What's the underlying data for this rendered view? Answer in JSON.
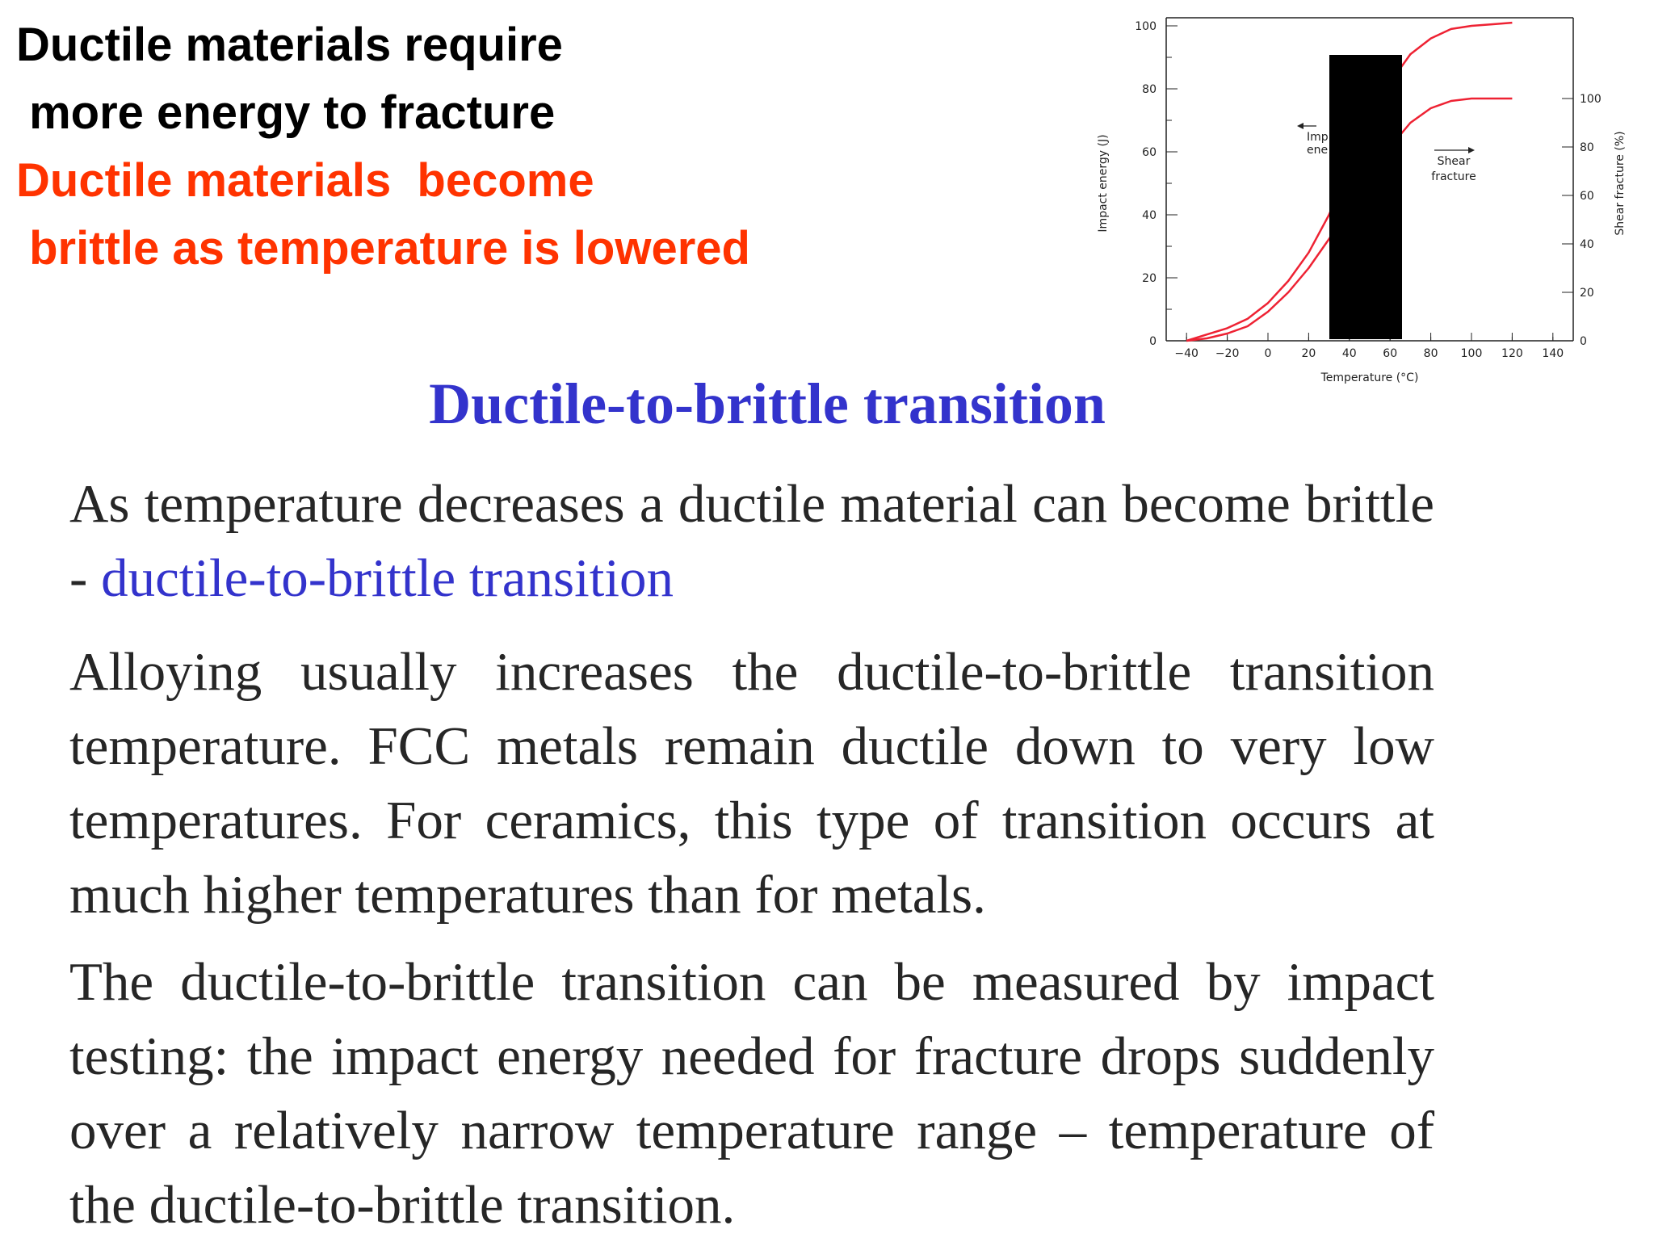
{
  "headline": {
    "line1": "Ductile materials require\n more energy to fracture",
    "line2": "Ductile materials  become\n brittle as temperature is lowered",
    "color1": "#000000",
    "color2": "#ff3300"
  },
  "title": {
    "text": "Ductile-to-brittle transition",
    "color": "#3333cc"
  },
  "body": {
    "p1_text": "As temperature decreases a ductile material can become brittle - ",
    "p1_term": "ductile-to-brittle transition",
    "term_color": "#3333cc",
    "p2": "Alloying usually increases the ductile-to-brittle transition temperature.  FCC metals remain ductile down to very low temperatures.  For ceramics, this type of transition occurs at much higher temperatures than for metals.",
    "p3": "The ductile-to-brittle transition can be measured by impact testing: the impact energy needed for fracture drops suddenly over a relatively narrow temperature range – temperature of the ductile-to-brittle transition."
  },
  "chart_data": {
    "type": "line",
    "xlabel": "Temperature (°C)",
    "ylabel": "Impact energy (J)",
    "y2label": "Shear fracture (%)",
    "xlim": [
      -50,
      150
    ],
    "ylim": [
      0,
      100
    ],
    "y2lim": [
      0,
      130
    ],
    "x_ticks": [
      -40,
      -20,
      0,
      20,
      40,
      60,
      80,
      100,
      120,
      140
    ],
    "y_ticks": [
      0,
      20,
      40,
      60,
      80,
      100
    ],
    "y2_ticks": [
      0,
      20,
      40,
      60,
      80,
      100
    ],
    "line_color": "#ee2233",
    "series": [
      {
        "axis": "left",
        "x": [
          -40,
          -30,
          -20,
          -10,
          0,
          10,
          20,
          30,
          40,
          50,
          60,
          70,
          80,
          90,
          100,
          110,
          120
        ],
        "y": [
          0,
          2,
          4,
          7,
          12,
          19,
          28,
          40,
          55,
          70,
          82,
          91,
          96,
          99,
          100,
          100.5,
          101
        ]
      },
      {
        "axis": "right",
        "x": [
          -40,
          -30,
          -20,
          -10,
          0,
          10,
          20,
          30,
          40,
          50,
          60,
          70,
          80,
          90,
          100,
          110,
          120
        ],
        "y": [
          0,
          1,
          3,
          6,
          12,
          20,
          30,
          42,
          55,
          68,
          80,
          90,
          96,
          99,
          100,
          100,
          100
        ]
      }
    ],
    "annotations": [
      {
        "label_lines": [
          "Imp",
          "ene"
        ]
      },
      {
        "label_lines": [
          "Shear",
          "fracture"
        ]
      }
    ]
  }
}
